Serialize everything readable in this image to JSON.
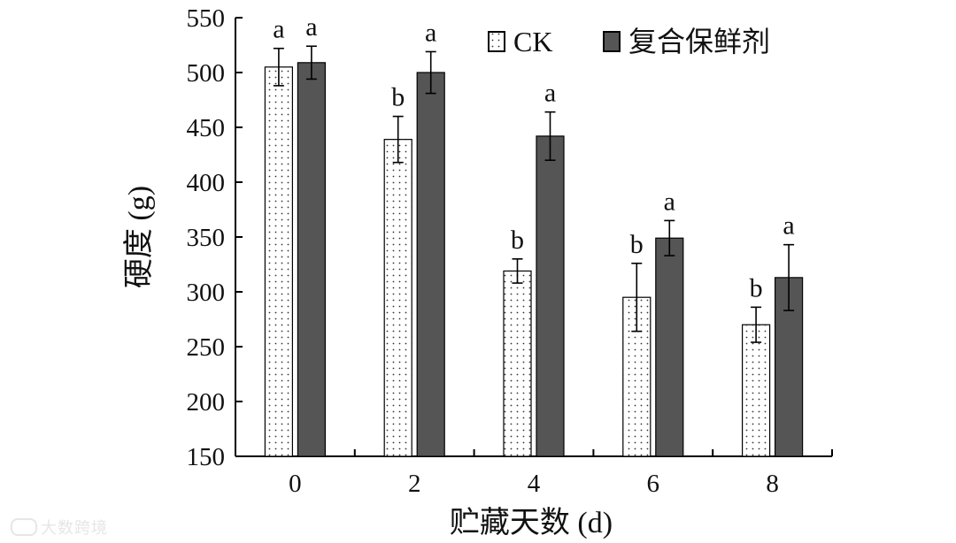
{
  "chart_data": {
    "type": "bar",
    "ylabel": "硬度 (g)",
    "xlabel": "贮藏天数 (d)",
    "categories": [
      "0",
      "2",
      "4",
      "6",
      "8"
    ],
    "ylim": [
      150,
      550
    ],
    "yticks": [
      150,
      200,
      250,
      300,
      350,
      400,
      450,
      500,
      550
    ],
    "legend_position": "top-right",
    "series": [
      {
        "name": "CK",
        "pattern": "dotted-white",
        "values": [
          505,
          439,
          319,
          295,
          270
        ],
        "errors": [
          17,
          21,
          11,
          31,
          16
        ],
        "labels": [
          "a",
          "b",
          "b",
          "b",
          "b"
        ]
      },
      {
        "name": "复合保鲜剂",
        "pattern": "solid-gray",
        "color": "#555555",
        "values": [
          509,
          500,
          442,
          349,
          313
        ],
        "errors": [
          15,
          19,
          22,
          16,
          30
        ],
        "labels": [
          "a",
          "a",
          "a",
          "a",
          "a"
        ]
      }
    ]
  },
  "watermark": {
    "text": "大数跨境"
  }
}
